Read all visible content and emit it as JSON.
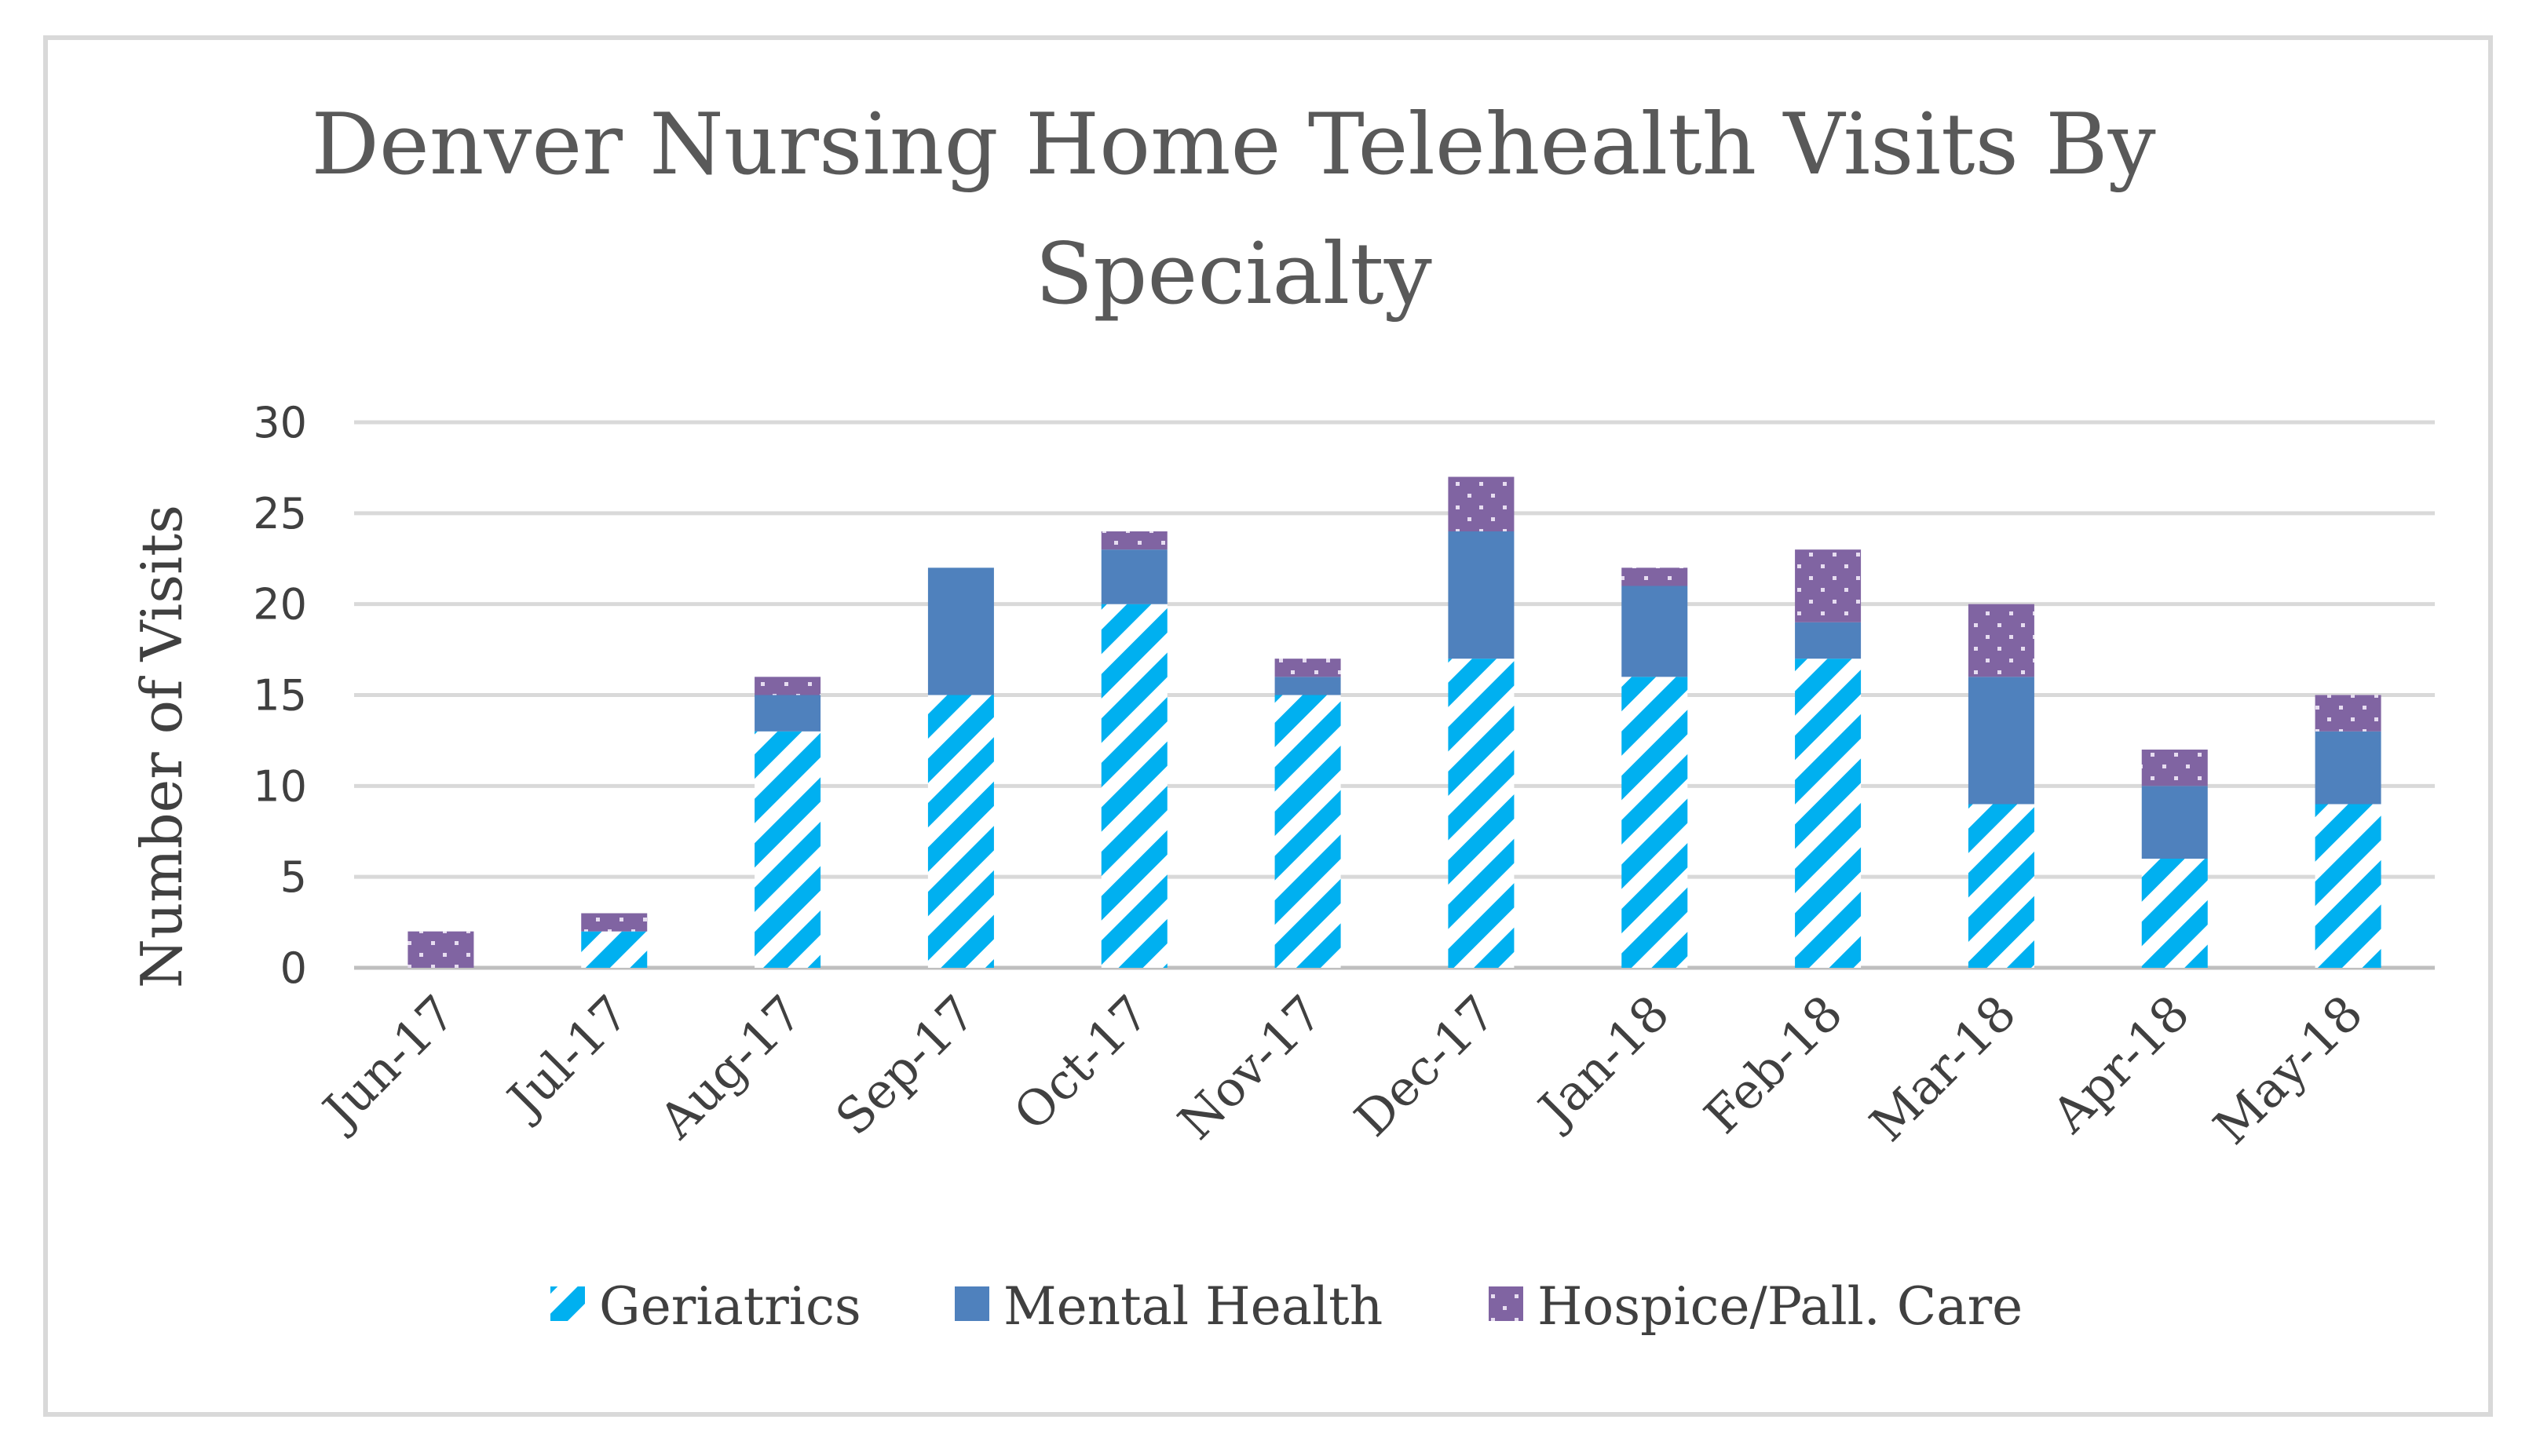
{
  "chart_data": {
    "type": "bar",
    "stacked": true,
    "title_line1": "Denver Nursing Home Telehealth Visits By",
    "title_line2": "Specialty",
    "xlabel": "",
    "ylabel": "Number of Visits",
    "ylim": [
      0,
      30
    ],
    "yticks": [
      "0",
      "5",
      "10",
      "15",
      "20",
      "25",
      "30"
    ],
    "grid": true,
    "legend_position": "bottom",
    "categories": [
      "Jun-17",
      "Jul-17",
      "Aug-17",
      "Sep-17",
      "Oct-17",
      "Nov-17",
      "Dec-17",
      "Jan-18",
      "Feb-18",
      "Mar-18",
      "Apr-18",
      "May-18"
    ],
    "series": [
      {
        "name": "Geriatrics",
        "pattern": "diagonal-stripes",
        "color": "#00b0f0",
        "values": [
          0,
          2,
          13,
          15,
          20,
          15,
          17,
          16,
          17,
          9,
          6,
          9
        ]
      },
      {
        "name": "Mental Health",
        "pattern": "solid",
        "color": "#4f81bd",
        "values": [
          0,
          0,
          2,
          7,
          3,
          1,
          7,
          5,
          2,
          7,
          4,
          4
        ]
      },
      {
        "name": "Hospice/Pall. Care",
        "pattern": "dotted",
        "color": "#8064a2",
        "values": [
          2,
          1,
          1,
          0,
          1,
          1,
          3,
          1,
          4,
          4,
          2,
          2
        ]
      }
    ]
  }
}
